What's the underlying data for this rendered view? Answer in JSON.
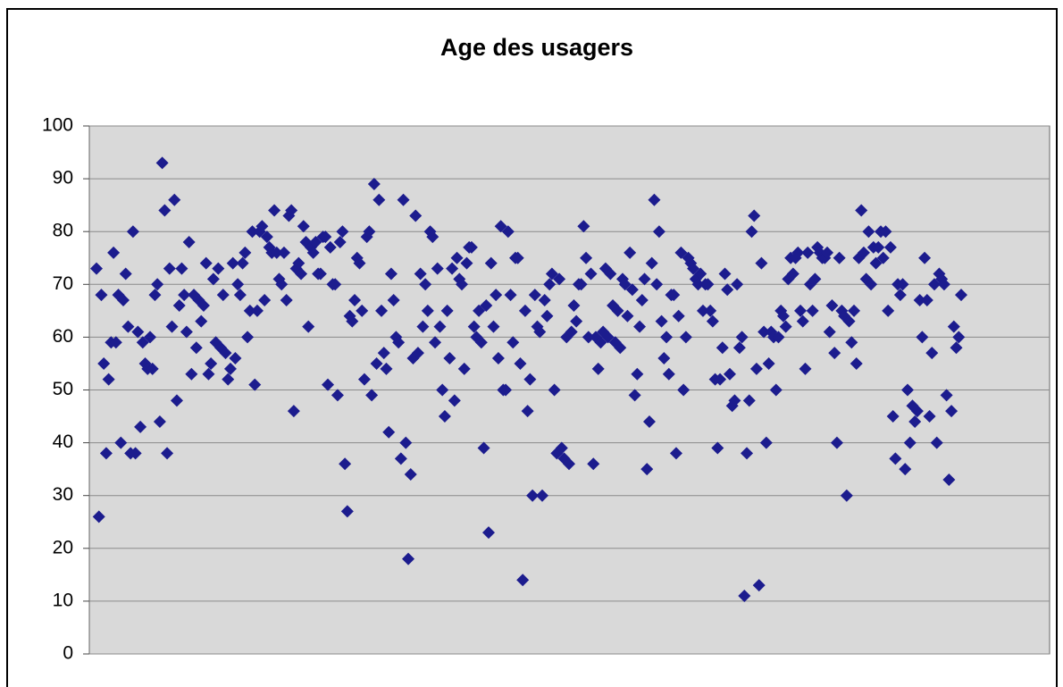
{
  "chart_data": {
    "type": "scatter",
    "title": "Age des usagers",
    "color": "#1c1c8e",
    "ylim": [
      0,
      100
    ],
    "yticks": [
      0,
      10,
      20,
      30,
      40,
      50,
      60,
      70,
      80,
      90,
      100
    ],
    "grid": true,
    "values": [
      73,
      26,
      68,
      55,
      38,
      52,
      59,
      76,
      59,
      68,
      40,
      67,
      72,
      62,
      38,
      80,
      38,
      61,
      43,
      59,
      55,
      54,
      60,
      54,
      68,
      70,
      44,
      93,
      84,
      38,
      73,
      62,
      86,
      48,
      66,
      73,
      68,
      61,
      78,
      53,
      68,
      58,
      67,
      63,
      66,
      74,
      53,
      55,
      71,
      59,
      73,
      58,
      68,
      57,
      52,
      54,
      74,
      56,
      70,
      68,
      74,
      76,
      60,
      65,
      80,
      51,
      65,
      80,
      81,
      67,
      79,
      77,
      76,
      84,
      76,
      71,
      70,
      76,
      67,
      83,
      84,
      46,
      73,
      74,
      72,
      81,
      78,
      62,
      77,
      76,
      78,
      72,
      72,
      79,
      79,
      51,
      77,
      70,
      70,
      49,
      78,
      80,
      36,
      27,
      64,
      63,
      67,
      75,
      74,
      65,
      52,
      79,
      80,
      49,
      89,
      55,
      86,
      65,
      57,
      54,
      42,
      72,
      67,
      60,
      59,
      37,
      86,
      40,
      18,
      34,
      56,
      83,
      57,
      72,
      62,
      70,
      65,
      80,
      79,
      59,
      73,
      62,
      50,
      45,
      65,
      56,
      73,
      48,
      75,
      71,
      70,
      54,
      74,
      77,
      77,
      62,
      60,
      65,
      59,
      39,
      66,
      23,
      74,
      62,
      68,
      56,
      81,
      50,
      50,
      80,
      68,
      59,
      75,
      75,
      55,
      14,
      65,
      46,
      52,
      30,
      68,
      62,
      61,
      30,
      67,
      64,
      70,
      72,
      50,
      38,
      71,
      39,
      37,
      60,
      36,
      61,
      66,
      63,
      70,
      70,
      81,
      75,
      60,
      72,
      36,
      60,
      54,
      59,
      61,
      73,
      60,
      72,
      66,
      59,
      65,
      58,
      71,
      70,
      64,
      76,
      69,
      49,
      53,
      62,
      67,
      71,
      35,
      44,
      74,
      86,
      70,
      80,
      63,
      56,
      60,
      53,
      68,
      68,
      38,
      64,
      76,
      50,
      60,
      75,
      74,
      73,
      71,
      70,
      72,
      65,
      70,
      70,
      65,
      63,
      52,
      39,
      52,
      58,
      72,
      69,
      53,
      47,
      48,
      70,
      58,
      60,
      11,
      38,
      48,
      80,
      83,
      54,
      13,
      74,
      61,
      40,
      55,
      61,
      60,
      50,
      60,
      65,
      64,
      62,
      71,
      75,
      72,
      75,
      76,
      65,
      63,
      54,
      76,
      70,
      65,
      71,
      77,
      76,
      75,
      75,
      76,
      61,
      66,
      57,
      40,
      75,
      65,
      64,
      30,
      63,
      59,
      65,
      55,
      75,
      84,
      76,
      71,
      80,
      70,
      77,
      74,
      77,
      80,
      75,
      80,
      65,
      77,
      45,
      37,
      70,
      68,
      70,
      35,
      50,
      40,
      47,
      44,
      46,
      67,
      60,
      75,
      67,
      45,
      57,
      70,
      40,
      72,
      71,
      70,
      49,
      33,
      46,
      62,
      58,
      60,
      68
    ]
  }
}
